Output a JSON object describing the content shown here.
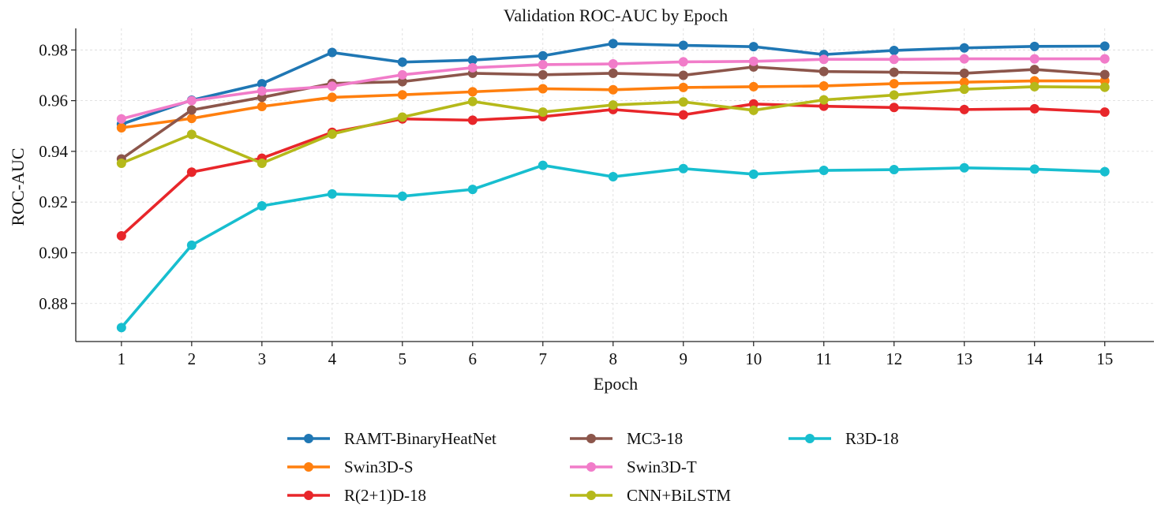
{
  "chart_data": {
    "type": "line",
    "title": "Validation ROC-AUC by Epoch",
    "xlabel": "Epoch",
    "ylabel": "ROC-AUC",
    "x": [
      1,
      2,
      3,
      4,
      5,
      6,
      7,
      8,
      9,
      10,
      11,
      12,
      13,
      14,
      15
    ],
    "xticks": [
      "1",
      "2",
      "3",
      "4",
      "5",
      "6",
      "7",
      "8",
      "9",
      "10",
      "11",
      "12",
      "13",
      "14",
      "15"
    ],
    "yticks": [
      "0.88",
      "0.90",
      "0.92",
      "0.94",
      "0.96",
      "0.98"
    ],
    "ylim": [
      0.865,
      0.9885
    ],
    "xlim": [
      0.35,
      15.7
    ],
    "grid": true,
    "legend_position": "bottom-center",
    "series": [
      {
        "name": "RAMT-BinaryHeatNet",
        "color": "#1f77b4",
        "values": [
          0.9507,
          0.9602,
          0.9667,
          0.979,
          0.9752,
          0.976,
          0.9777,
          0.9825,
          0.9818,
          0.9813,
          0.9782,
          0.9798,
          0.9808,
          0.9814,
          0.9815
        ]
      },
      {
        "name": "Swin3D-S",
        "color": "#ff7f0e",
        "values": [
          0.9493,
          0.953,
          0.9577,
          0.9613,
          0.9623,
          0.9635,
          0.9647,
          0.9643,
          0.9652,
          0.9655,
          0.9658,
          0.9667,
          0.9673,
          0.9678,
          0.9678
        ]
      },
      {
        "name": "R(2+1)D-18",
        "color": "#e8262a",
        "values": [
          0.9067,
          0.9318,
          0.9373,
          0.9475,
          0.9528,
          0.9523,
          0.9537,
          0.9565,
          0.9544,
          0.9587,
          0.9578,
          0.9573,
          0.9565,
          0.9568,
          0.9555
        ]
      },
      {
        "name": "MC3-18",
        "color": "#8c564b",
        "values": [
          0.937,
          0.9563,
          0.9613,
          0.9668,
          0.9675,
          0.9708,
          0.9702,
          0.9708,
          0.97,
          0.9733,
          0.9715,
          0.9712,
          0.9708,
          0.9723,
          0.9703
        ]
      },
      {
        "name": "Swin3D-T",
        "color": "#f17cc9",
        "values": [
          0.9528,
          0.96,
          0.9638,
          0.9657,
          0.9702,
          0.973,
          0.9742,
          0.9745,
          0.9753,
          0.9755,
          0.9763,
          0.9763,
          0.9765,
          0.9765,
          0.9765
        ]
      },
      {
        "name": "CNN+BiLSTM",
        "color": "#b5b91a",
        "values": [
          0.9353,
          0.9467,
          0.9353,
          0.9468,
          0.9535,
          0.9597,
          0.9555,
          0.9583,
          0.9595,
          0.9562,
          0.9603,
          0.9622,
          0.9645,
          0.9655,
          0.9653
        ]
      },
      {
        "name": "R3D-18",
        "color": "#17becf",
        "values": [
          0.8705,
          0.903,
          0.9185,
          0.9232,
          0.9223,
          0.925,
          0.9345,
          0.93,
          0.9332,
          0.931,
          0.9325,
          0.9328,
          0.9335,
          0.933,
          0.932
        ]
      }
    ]
  }
}
